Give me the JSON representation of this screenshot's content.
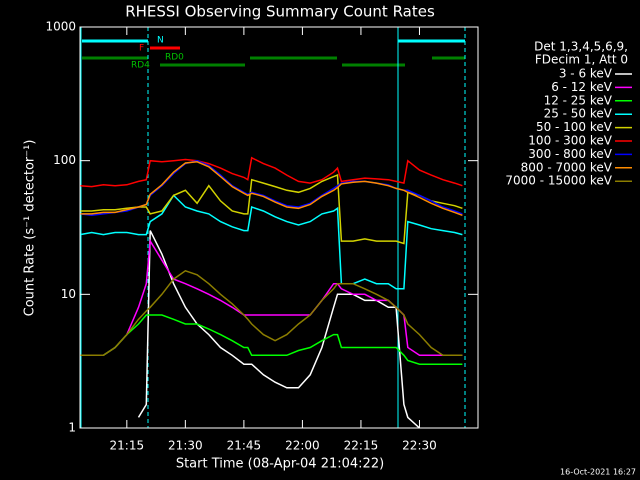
{
  "chart_data": {
    "type": "line",
    "title": "RHESSI Observing Summary Count Rates",
    "xlabel": "Start Time (08-Apr-04 21:04:22)",
    "ylabel": "Count Rate (s⁻¹ detector⁻¹)",
    "legend_title": [
      "Det 1,3,4,5,6,9,",
      "FDecim 1, Att 0"
    ],
    "flags": {
      "night": "N",
      "flare": "F",
      "rd0": "RD0",
      "rd4": "RD4"
    },
    "timestamp": "16-Oct-2021 16:27",
    "ylog": true,
    "ylim": [
      1,
      1000
    ],
    "yticks": [
      1,
      10,
      100,
      1000
    ],
    "xlim": [
      1263,
      1365
    ],
    "xticks": [
      {
        "value": 1275,
        "label": "21:15"
      },
      {
        "value": 1290,
        "label": "21:30"
      },
      {
        "value": 1305,
        "label": "21:45"
      },
      {
        "value": 1320,
        "label": "22:00"
      },
      {
        "value": 1335,
        "label": "22:15"
      },
      {
        "value": 1350,
        "label": "22:30"
      }
    ],
    "x": [
      1263,
      1266,
      1269,
      1272,
      1275,
      1278,
      1280,
      1281,
      1284,
      1287,
      1290,
      1293,
      1296,
      1299,
      1302,
      1305,
      1306,
      1307,
      1310,
      1313,
      1316,
      1319,
      1322,
      1325,
      1328,
      1329,
      1330,
      1333,
      1336,
      1339,
      1342,
      1344,
      1346,
      1347,
      1350,
      1353,
      1356,
      1359,
      1361
    ],
    "series": [
      {
        "name": "3 - 6 keV",
        "color": "#ffffff",
        "values": [
          null,
          null,
          null,
          null,
          null,
          1.2,
          1.5,
          30,
          20,
          12,
          8,
          6,
          5,
          4,
          3.5,
          3,
          3,
          3,
          2.5,
          2.2,
          2,
          2,
          2.5,
          4,
          8,
          10,
          10,
          10,
          9,
          9,
          8,
          8,
          1.5,
          1.2,
          1,
          null,
          null,
          null,
          null
        ]
      },
      {
        "name": "6 - 12 keV",
        "color": "#ff00ff",
        "values": [
          3.5,
          3.5,
          3.5,
          4,
          5,
          8,
          12,
          25,
          18,
          13,
          12,
          11,
          10,
          9,
          8,
          7,
          7,
          7,
          7,
          7,
          7,
          7,
          7,
          9,
          12,
          12,
          11,
          10,
          10,
          9,
          9,
          8,
          7,
          4,
          3.5,
          3.5,
          3.5,
          3.5,
          3.5
        ]
      },
      {
        "name": "12 - 25 keV",
        "color": "#00ff00",
        "values": [
          3.5,
          3.5,
          3.5,
          4,
          5,
          6,
          7,
          7,
          7,
          6.5,
          6,
          6,
          5.5,
          5,
          4.5,
          4,
          4,
          3.5,
          3.5,
          3.5,
          3.5,
          3.8,
          4,
          4.5,
          5,
          5,
          4,
          4,
          4,
          4,
          4,
          4,
          3.5,
          3.2,
          3,
          3,
          3,
          3,
          3
        ]
      },
      {
        "name": "25 - 50 keV",
        "color": "#00ffff",
        "values": [
          28,
          29,
          28,
          29,
          29,
          28,
          28,
          35,
          40,
          55,
          45,
          42,
          40,
          35,
          32,
          30,
          30,
          45,
          42,
          38,
          35,
          33,
          35,
          40,
          42,
          44,
          12,
          12,
          13,
          12,
          12,
          11,
          11,
          35,
          33,
          31,
          30,
          29,
          28
        ]
      },
      {
        "name": "50 - 100 keV",
        "color": "#d2d200",
        "values": [
          42,
          42,
          43,
          43,
          44,
          45,
          45,
          40,
          42,
          55,
          60,
          48,
          65,
          50,
          42,
          40,
          40,
          72,
          68,
          64,
          60,
          58,
          62,
          70,
          76,
          78,
          25,
          25,
          26,
          25,
          25,
          25,
          24,
          58,
          55,
          50,
          48,
          46,
          44
        ]
      },
      {
        "name": "100 - 300 keV",
        "color": "#ff0000",
        "values": [
          65,
          64,
          66,
          65,
          66,
          70,
          72,
          100,
          98,
          100,
          102,
          100,
          95,
          88,
          80,
          75,
          72,
          105,
          95,
          88,
          78,
          70,
          68,
          72,
          82,
          88,
          70,
          72,
          74,
          73,
          72,
          70,
          68,
          100,
          85,
          78,
          72,
          68,
          65
        ]
      },
      {
        "name": "300 - 800 keV",
        "color": "#0000ff",
        "values": [
          40,
          39,
          40,
          41,
          42,
          45,
          47,
          55,
          65,
          80,
          95,
          100,
          92,
          78,
          65,
          58,
          56,
          58,
          55,
          50,
          46,
          45,
          48,
          55,
          62,
          65,
          68,
          70,
          70,
          68,
          66,
          62,
          60,
          60,
          55,
          50,
          45,
          42,
          40
        ]
      },
      {
        "name": "800 - 7000 keV",
        "color": "#ff8c00",
        "values": [
          40,
          40,
          41,
          41,
          43,
          45,
          47,
          56,
          66,
          82,
          96,
          98,
          90,
          76,
          64,
          57,
          55,
          57,
          54,
          49,
          45,
          44,
          47,
          54,
          60,
          63,
          67,
          69,
          70,
          68,
          65,
          62,
          60,
          58,
          53,
          48,
          44,
          41,
          39
        ]
      },
      {
        "name": "7000 - 15000 keV",
        "color": "#8b7d00",
        "values": [
          3.5,
          3.5,
          3.5,
          4,
          5,
          6.5,
          7.5,
          8,
          10,
          13,
          15,
          14,
          12,
          10,
          8.5,
          7,
          6.5,
          6,
          5,
          4.5,
          5,
          6,
          7,
          9,
          11,
          12,
          12,
          12,
          11,
          10,
          9,
          8,
          7,
          6,
          5,
          4,
          3.5,
          3.5,
          3.5
        ]
      }
    ]
  }
}
